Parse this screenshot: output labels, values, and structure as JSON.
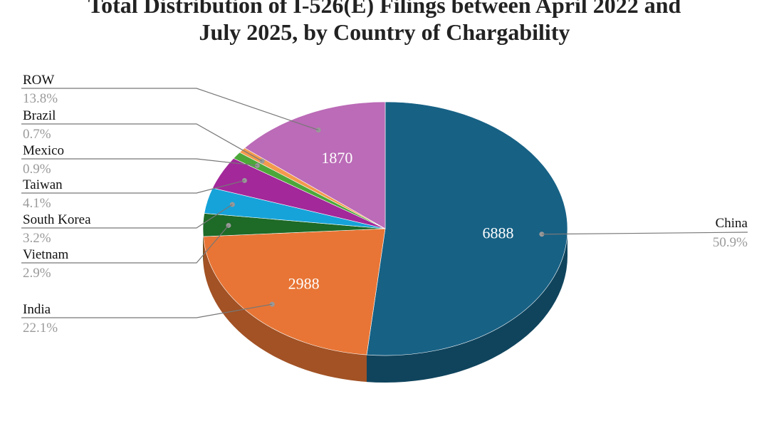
{
  "chart_data": {
    "type": "pie",
    "title": "Total Distribution of I-526(E) Filings between April 2022 and July 2025, by Country of Chargability",
    "title_lines": [
      "Total Distribution of I-526(E) Filings between April 2022 and",
      "July 2025, by Country of Chargability"
    ],
    "slices": [
      {
        "label": "China",
        "value": 6888,
        "percent": "50.9%",
        "color": "#176185",
        "value_label": "6888"
      },
      {
        "label": "India",
        "value": 2988,
        "percent": "22.1%",
        "color": "#e87535",
        "value_label": "2988"
      },
      {
        "label": "Vietnam",
        "value": 390,
        "percent": "2.9%",
        "color": "#1e6a27",
        "value_label": ""
      },
      {
        "label": "South Korea",
        "value": 435,
        "percent": "3.2%",
        "color": "#16a3d9",
        "value_label": ""
      },
      {
        "label": "Taiwan",
        "value": 556,
        "percent": "4.1%",
        "color": "#a3289a",
        "value_label": ""
      },
      {
        "label": "Mexico",
        "value": 122,
        "percent": "0.9%",
        "color": "#4ca73a",
        "value_label": ""
      },
      {
        "label": "Brazil",
        "value": 95,
        "percent": "0.7%",
        "color": "#f39a4d",
        "value_label": ""
      },
      {
        "label": "ROW",
        "value": 1870,
        "percent": "13.8%",
        "color": "#bb6bb7",
        "value_label": "1870"
      }
    ],
    "legend": "callout labels"
  }
}
